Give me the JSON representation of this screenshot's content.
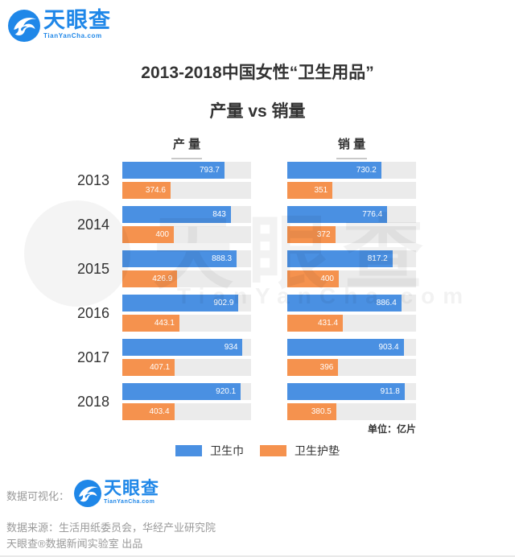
{
  "brand": {
    "name": "天眼查",
    "domain": "TianYanCha.com",
    "color": "#1f87e8"
  },
  "title": {
    "line1": "2013-2018中国女性“卫生用品”",
    "line2": "产量 vs 销量"
  },
  "chart_data": {
    "type": "bar",
    "orientation": "horizontal",
    "title": "2013-2018中国女性“卫生用品” 产量 vs 销量",
    "unit_label": "单位：亿片",
    "categories": [
      "2013",
      "2014",
      "2015",
      "2016",
      "2017",
      "2018"
    ],
    "xlim": [
      0,
      1000
    ],
    "grid": false,
    "legend_position": "bottom",
    "groups": [
      {
        "label": "产 量",
        "series": [
          {
            "name": "卫生巾",
            "color": "#4a90e2",
            "values": [
              793.7,
              843,
              888.3,
              902.9,
              934,
              920.1
            ]
          },
          {
            "name": "卫生护垫",
            "color": "#f5924e",
            "values": [
              374.6,
              400,
              426.9,
              443.1,
              407.1,
              403.4
            ]
          }
        ]
      },
      {
        "label": "销 量",
        "series": [
          {
            "name": "卫生巾",
            "color": "#4a90e2",
            "values": [
              730.2,
              776.4,
              817.2,
              886.4,
              903.4,
              911.8
            ]
          },
          {
            "name": "卫生护垫",
            "color": "#f5924e",
            "values": [
              351,
              372,
              400,
              431.4,
              396,
              380.5
            ]
          }
        ]
      }
    ],
    "legend": [
      {
        "label": "卫生巾",
        "color": "#4a90e2"
      },
      {
        "label": "卫生护垫",
        "color": "#f5924e"
      }
    ]
  },
  "watermark": {
    "text": "天眼查",
    "subtext": "TianYanCha.com"
  },
  "footer": {
    "visualization_label": "数据可视化：",
    "source": "数据来源：生活用纸委员会，华经产业研究院",
    "produced_by": "天眼查®数据新闻实验室 出品"
  }
}
